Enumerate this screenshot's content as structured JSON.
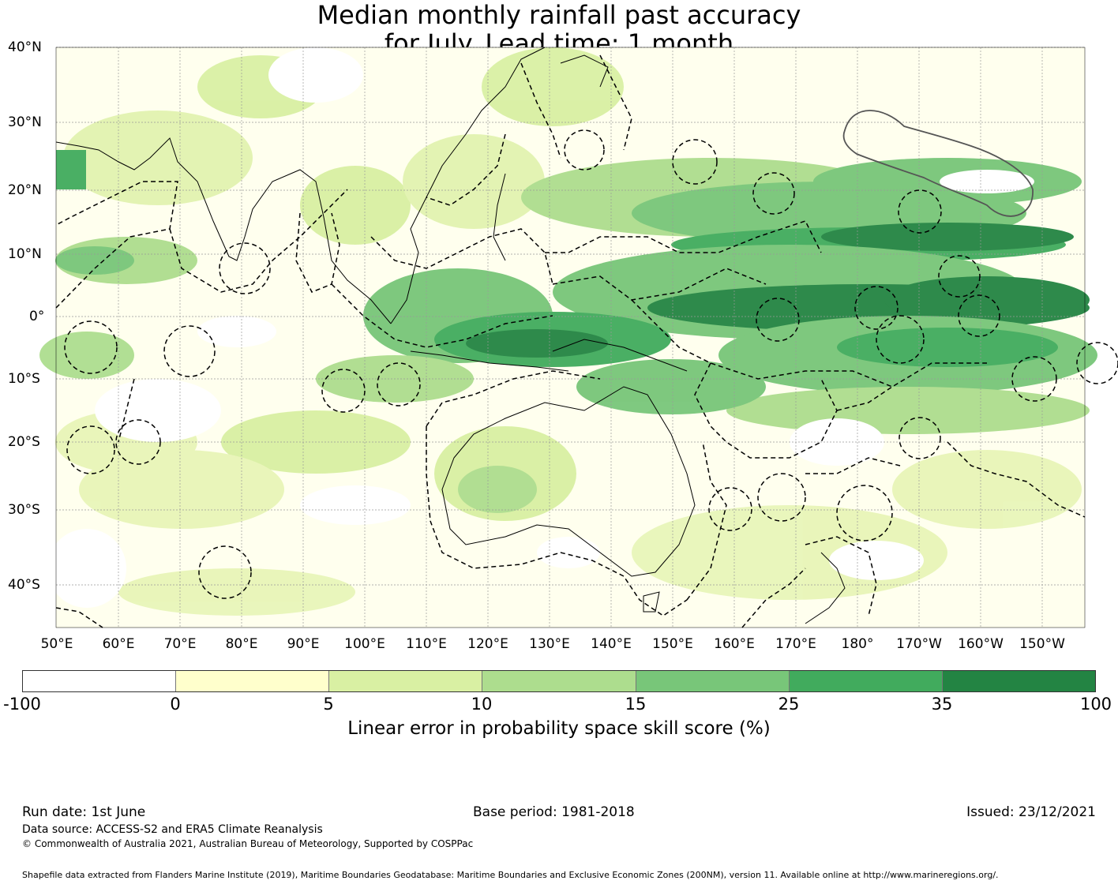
{
  "title_line1": "Median monthly rainfall past accuracy",
  "title_line2": "for July. Lead time: 1 month",
  "lat_labels": [
    "40°N",
    "30°N",
    "20°N",
    "10°N",
    "0°",
    "10°S",
    "20°S",
    "30°S",
    "40°S"
  ],
  "lon_labels": [
    "50°E",
    "60°E",
    "70°E",
    "80°E",
    "90°E",
    "100°E",
    "110°E",
    "120°E",
    "130°E",
    "140°E",
    "150°E",
    "160°E",
    "170°E",
    "180°",
    "170°W",
    "160°W",
    "150°W"
  ],
  "colorbar": {
    "ticks": [
      "-100",
      "0",
      "5",
      "10",
      "15",
      "25",
      "35",
      "100"
    ],
    "colors": [
      "#ffffff",
      "#ffffcc",
      "#d9f0a3",
      "#addd8e",
      "#78c679",
      "#41ab5d",
      "#238443"
    ],
    "label": "Linear error in probability space skill score (%)"
  },
  "footer": {
    "run_date": "Run date: 1st June",
    "base_period": "Base period: 1981-2018",
    "issued": "Issued: 23/12/2021",
    "data_source": "Data source: ACCESS-S2 and ERA5 Climate Reanalysis",
    "copyright": "© Commonwealth of Australia 2021, Australian Bureau of Meteorology, Supported by COSPPac",
    "shapefile": "Shapefile data extracted from Flanders Marine Institute (2019), Maritime Boundaries Geodatabase: Maritime Boundaries and Exclusive Economic Zones (200NM), version 11. Available online at http://www.marineregions.org/."
  }
}
